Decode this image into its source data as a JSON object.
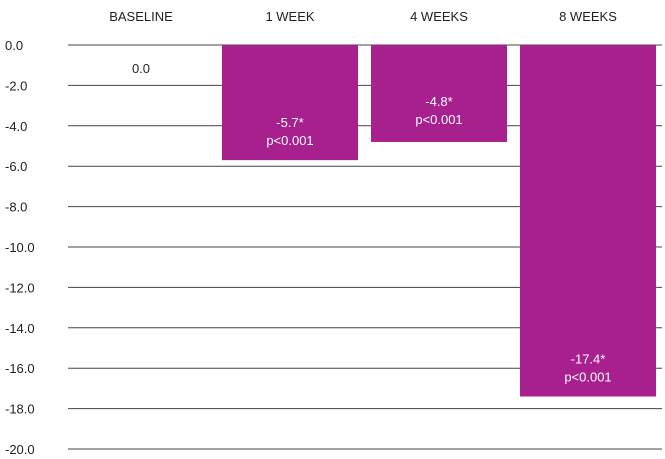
{
  "chart_data": {
    "type": "bar",
    "categories": [
      "BASELINE",
      "1 WEEK",
      "4 WEEKS",
      "8 WEEKS"
    ],
    "values": [
      0.0,
      -5.7,
      -4.8,
      -17.4
    ],
    "data_labels": [
      [
        "0.0"
      ],
      [
        "-5.7*",
        "p<0.001"
      ],
      [
        "-4.8*",
        "p<0.001"
      ],
      [
        "-17.4*",
        "p<0.001"
      ]
    ],
    "yticks": [
      "0.0",
      "-2.0",
      "-4.0",
      "-6.0",
      "-8.0",
      "-10.0",
      "-12.0",
      "-14.0",
      "-16.0",
      "-18.0",
      "-20.0"
    ],
    "ylim": [
      -20,
      0
    ],
    "category_axis_position": "top",
    "grid": true,
    "title": "",
    "xlabel": "",
    "ylabel": "",
    "colors": {
      "bar": "#a8208e",
      "grid": "#444444",
      "text": "#222222",
      "label_on_bar": "#ffffff"
    }
  }
}
